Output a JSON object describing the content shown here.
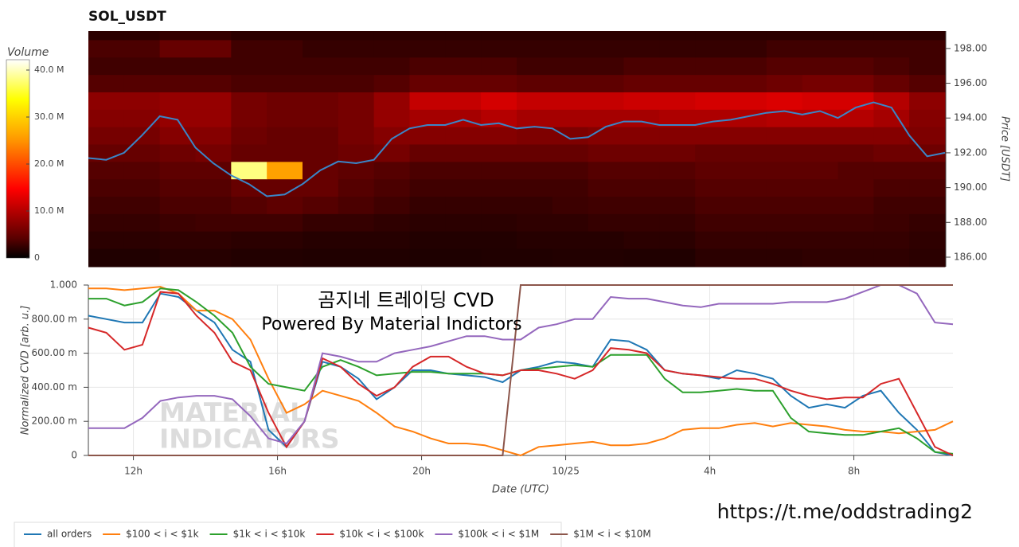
{
  "chart_data": [
    {
      "type": "heatmap",
      "title": "SOL_USDT",
      "xlim": [
        10.75,
        34.75
      ],
      "ylim": [
        185.45,
        199.0
      ],
      "y_axis_side": "right",
      "y_label": "Price [USDT]",
      "yticks": [
        {
          "value": 186,
          "label": "186.00"
        },
        {
          "value": 188,
          "label": "188.00"
        },
        {
          "value": 190,
          "label": "190.00"
        },
        {
          "value": 192,
          "label": "192.00"
        },
        {
          "value": 194,
          "label": "194.00"
        },
        {
          "value": 196,
          "label": "196.00"
        },
        {
          "value": 198,
          "label": "198.00"
        }
      ],
      "colorbar_label": "Volume",
      "zlim": [
        0,
        42.2
      ],
      "zticks": [
        0,
        {
          "value": 10,
          "label": "10.0 M"
        },
        {
          "value": 20,
          "label": "20.0 M"
        },
        {
          "value": 30,
          "label": "30.0 M"
        },
        {
          "value": 40,
          "label": "40.0 M"
        }
      ],
      "xbins": [
        10.75,
        11.75,
        12.75,
        13.75,
        14.75,
        15.75,
        16.75,
        17.75,
        18.75,
        19.75,
        20.75,
        21.75,
        22.75,
        23.75,
        24.75,
        25.75,
        26.75,
        27.75,
        28.75,
        29.75,
        30.75,
        31.75,
        32.75,
        33.75,
        34.75
      ],
      "ybins": [
        185.45,
        186.5,
        187.5,
        188.5,
        189.5,
        190.5,
        191.5,
        192.5,
        193.5,
        194.5,
        195.5,
        196.5,
        197.5,
        198.5,
        199.0
      ],
      "z": [
        [
          1.5,
          1.5,
          1.8,
          1.8,
          1.6,
          1.6,
          1.5,
          1.5,
          1.5,
          1.4,
          1.4,
          1.5,
          1.5,
          1.6,
          1.6,
          1.5,
          1.5,
          2.0,
          2.0,
          2.0,
          2.2,
          2.2,
          2.2,
          2.0
        ],
        [
          2,
          2,
          2.2,
          2.2,
          2,
          2,
          1.8,
          1.8,
          1.8,
          1.6,
          1.6,
          1.6,
          1.8,
          1.8,
          1.8,
          2,
          2,
          2.5,
          2.5,
          2.5,
          2.5,
          2.5,
          2.5,
          2.2
        ],
        [
          2.5,
          2.5,
          2.8,
          3,
          3,
          3,
          2.5,
          2.5,
          2.2,
          2,
          2,
          2,
          2.2,
          2.2,
          2.5,
          2.5,
          2.5,
          3,
          3,
          3,
          3,
          3,
          2.8,
          2.5
        ],
        [
          3,
          3,
          3.5,
          3.5,
          4,
          4.5,
          4,
          3.5,
          3,
          2.5,
          2.5,
          2.5,
          2.5,
          2.8,
          3,
          3,
          3,
          3.5,
          3.5,
          3.5,
          3.5,
          3.5,
          3,
          3
        ],
        [
          3.5,
          3.5,
          4,
          4,
          5,
          5,
          5,
          4,
          3.5,
          3,
          3,
          3,
          3,
          3,
          3.5,
          3.5,
          3.5,
          4,
          4,
          4,
          4,
          4,
          3.5,
          3.5
        ],
        [
          4,
          4,
          4.5,
          4.5,
          38,
          26,
          5,
          4.5,
          4,
          3.5,
          3.5,
          3.5,
          3.5,
          3.5,
          4,
          4,
          4,
          4.5,
          4.5,
          4.5,
          4.5,
          4,
          4,
          4
        ],
        [
          5,
          5,
          5.5,
          6,
          5,
          5,
          5,
          5.5,
          6,
          5,
          5,
          5,
          5,
          5,
          5.5,
          5.5,
          5.5,
          5,
          5,
          5,
          5,
          5,
          5.5,
          5.5
        ],
        [
          6,
          6,
          7,
          7,
          5.5,
          5,
          5,
          6,
          7,
          7,
          7,
          7,
          6.5,
          6.5,
          7,
          7,
          7,
          7,
          7,
          7,
          7,
          7,
          7,
          6.5
        ],
        [
          7,
          7,
          8,
          8,
          6,
          5.5,
          5.5,
          6,
          8,
          9,
          9,
          10,
          9,
          9,
          9,
          9,
          9.5,
          9.5,
          9.5,
          10,
          10,
          10,
          9,
          7
        ],
        [
          7.5,
          7.5,
          8,
          8,
          6,
          5.5,
          5.5,
          6,
          8,
          11,
          11,
          12,
          11,
          11,
          11,
          11.5,
          11.5,
          12,
          12,
          12.5,
          12,
          12,
          10,
          7.5
        ],
        [
          4,
          4,
          4,
          4,
          3.5,
          3.5,
          3.5,
          3.5,
          4,
          5,
          5,
          5,
          4.5,
          4.5,
          4.5,
          5,
          5,
          5,
          5,
          5.5,
          6,
          6,
          5,
          4
        ],
        [
          3,
          3,
          3,
          3,
          3,
          3,
          3,
          3,
          3,
          3.5,
          3.5,
          3.5,
          3,
          3,
          3,
          3.5,
          3.5,
          3.5,
          3.5,
          4,
          4,
          4,
          3.5,
          3
        ],
        [
          3.5,
          3.5,
          5,
          5,
          3,
          3,
          2.5,
          2.5,
          2.5,
          2.5,
          2.5,
          2.5,
          2.5,
          2.5,
          2.5,
          2.5,
          2.5,
          2.5,
          2.5,
          3,
          3,
          3,
          3,
          3
        ],
        [
          2,
          2,
          2.5,
          2.5,
          2,
          2,
          2,
          2,
          2,
          2,
          2,
          2,
          2,
          2,
          2,
          2,
          2,
          2,
          2,
          2,
          2,
          2,
          2,
          2
        ]
      ],
      "x": [
        10.75,
        11.25,
        11.75,
        12.25,
        12.75,
        13.25,
        13.75,
        14.25,
        14.75,
        15.25,
        15.75,
        16.25,
        16.75,
        17.25,
        17.75,
        18.25,
        18.75,
        19.25,
        19.75,
        20.25,
        20.75,
        21.25,
        21.75,
        22.25,
        22.75,
        23.25,
        23.75,
        24.25,
        24.75,
        25.25,
        25.75,
        26.25,
        26.75,
        27.25,
        27.75,
        28.25,
        28.75,
        29.25,
        29.75,
        30.25,
        30.75,
        31.25,
        31.75,
        32.25,
        32.75,
        33.25,
        33.75,
        34.25,
        34.75
      ],
      "line": {
        "color": "#3a86c8",
        "values": [
          191.7,
          191.6,
          192.0,
          193.0,
          194.1,
          193.9,
          192.3,
          191.4,
          190.7,
          190.2,
          189.5,
          189.6,
          190.2,
          191.0,
          191.5,
          191.4,
          191.6,
          192.8,
          193.4,
          193.6,
          193.6,
          193.9,
          193.6,
          193.7,
          193.4,
          193.5,
          193.4,
          192.8,
          192.9,
          193.5,
          193.8,
          193.8,
          193.6,
          193.6,
          193.6,
          193.8,
          193.9,
          194.1,
          194.3,
          194.4,
          194.2,
          194.4,
          194.0,
          194.6,
          194.9,
          194.6,
          193.0,
          191.8,
          192.0
        ]
      }
    },
    {
      "type": "line",
      "x_label": "Date (UTC)",
      "y_label": "Normalized CVD [arb. u.]",
      "grid": true,
      "legend": "below",
      "annotations": [
        "곰지네 트레이딩 CVD",
        "Powered By Material Indictors"
      ],
      "watermark": [
        "MATERIAL",
        "INDICATORS"
      ],
      "xlim": [
        10.75,
        34.75
      ],
      "ylim": [
        0,
        1
      ],
      "xticks": [
        {
          "value": 12,
          "label": "12h"
        },
        {
          "value": 16,
          "label": "16h"
        },
        {
          "value": 20,
          "label": "20h"
        },
        {
          "value": 24,
          "label": "10/25"
        },
        {
          "value": 28,
          "label": "4h"
        },
        {
          "value": 32,
          "label": "8h"
        }
      ],
      "yticks": [
        0,
        {
          "value": 0.2,
          "label": "200.00 m"
        },
        {
          "value": 0.4,
          "label": "400.00 m"
        },
        {
          "value": 0.6,
          "label": "600.00 m"
        },
        {
          "value": 0.8,
          "label": "800.00 m"
        },
        {
          "value": 1,
          "label": "1.000"
        }
      ],
      "x": [
        10.75,
        11.25,
        11.75,
        12.25,
        12.75,
        13.25,
        13.75,
        14.25,
        14.75,
        15.25,
        15.75,
        16.25,
        16.75,
        17.25,
        17.75,
        18.25,
        18.75,
        19.25,
        19.75,
        20.25,
        20.75,
        21.25,
        21.75,
        22.25,
        22.75,
        23.25,
        23.75,
        24.25,
        24.75,
        25.25,
        25.75,
        26.25,
        26.75,
        27.25,
        27.75,
        28.25,
        28.75,
        29.25,
        29.75,
        30.25,
        30.75,
        31.25,
        31.75,
        32.25,
        32.75,
        33.25,
        33.75,
        34.25,
        34.75
      ],
      "series": [
        {
          "name": "all orders",
          "color": "#1f77b4",
          "values": [
            0.82,
            0.8,
            0.78,
            0.78,
            0.95,
            0.93,
            0.85,
            0.78,
            0.62,
            0.55,
            0.15,
            0.05,
            0.2,
            0.55,
            0.52,
            0.45,
            0.33,
            0.4,
            0.5,
            0.5,
            0.48,
            0.47,
            0.46,
            0.43,
            0.5,
            0.52,
            0.55,
            0.54,
            0.52,
            0.68,
            0.67,
            0.62,
            0.5,
            0.48,
            0.47,
            0.45,
            0.5,
            0.48,
            0.45,
            0.35,
            0.28,
            0.3,
            0.28,
            0.35,
            0.38,
            0.25,
            0.15,
            0.02,
            0
          ]
        },
        {
          "name": "$100 < i < $1k",
          "color": "#ff7f0e",
          "values": [
            0.98,
            0.98,
            0.97,
            0.98,
            0.99,
            0.95,
            0.85,
            0.85,
            0.8,
            0.68,
            0.45,
            0.25,
            0.3,
            0.38,
            0.35,
            0.32,
            0.25,
            0.17,
            0.14,
            0.1,
            0.07,
            0.07,
            0.06,
            0.03,
            0,
            0.05,
            0.06,
            0.07,
            0.08,
            0.06,
            0.06,
            0.07,
            0.1,
            0.15,
            0.16,
            0.16,
            0.18,
            0.19,
            0.17,
            0.19,
            0.18,
            0.17,
            0.15,
            0.14,
            0.14,
            0.13,
            0.14,
            0.15,
            0.2
          ]
        },
        {
          "name": "$1k < i < $10k",
          "color": "#2ca02c",
          "values": [
            0.92,
            0.92,
            0.88,
            0.9,
            0.98,
            0.97,
            0.9,
            0.82,
            0.72,
            0.52,
            0.42,
            0.4,
            0.38,
            0.52,
            0.56,
            0.52,
            0.47,
            0.48,
            0.49,
            0.49,
            0.48,
            0.48,
            0.48,
            0.47,
            0.5,
            0.51,
            0.52,
            0.53,
            0.52,
            0.59,
            0.59,
            0.59,
            0.45,
            0.37,
            0.37,
            0.38,
            0.39,
            0.38,
            0.38,
            0.22,
            0.14,
            0.13,
            0.12,
            0.12,
            0.14,
            0.16,
            0.1,
            0.02,
            0.01
          ]
        },
        {
          "name": "$10k < i < $100k",
          "color": "#d62728",
          "values": [
            0.75,
            0.72,
            0.62,
            0.65,
            0.96,
            0.95,
            0.82,
            0.72,
            0.55,
            0.5,
            0.25,
            0.05,
            0.2,
            0.57,
            0.52,
            0.42,
            0.35,
            0.4,
            0.52,
            0.58,
            0.58,
            0.52,
            0.48,
            0.47,
            0.5,
            0.5,
            0.48,
            0.45,
            0.5,
            0.63,
            0.62,
            0.6,
            0.5,
            0.48,
            0.47,
            0.46,
            0.45,
            0.45,
            0.42,
            0.38,
            0.35,
            0.33,
            0.34,
            0.34,
            0.42,
            0.45,
            0.25,
            0.05,
            0
          ]
        },
        {
          "name": "$100k < i < $1M",
          "color": "#9467bd",
          "values": [
            0.16,
            0.16,
            0.16,
            0.22,
            0.32,
            0.34,
            0.35,
            0.35,
            0.33,
            0.23,
            0.1,
            0.07,
            0.2,
            0.6,
            0.58,
            0.55,
            0.55,
            0.6,
            0.62,
            0.64,
            0.67,
            0.7,
            0.7,
            0.68,
            0.68,
            0.75,
            0.77,
            0.8,
            0.8,
            0.93,
            0.92,
            0.92,
            0.9,
            0.88,
            0.87,
            0.89,
            0.89,
            0.89,
            0.89,
            0.9,
            0.9,
            0.9,
            0.92,
            0.96,
            1,
            1,
            0.95,
            0.78,
            0.77
          ]
        },
        {
          "name": "$1M < i < $10M",
          "color": "#8c564b",
          "values": [
            0,
            0,
            0,
            0,
            0,
            0,
            0,
            0,
            0,
            0,
            0,
            0,
            0,
            0,
            0,
            0,
            0,
            0,
            0,
            0,
            0,
            0,
            0,
            0,
            1,
            1,
            1,
            1,
            1,
            1,
            1,
            1,
            1,
            1,
            1,
            1,
            1,
            1,
            1,
            1,
            1,
            1,
            1,
            1,
            1,
            1,
            1,
            1,
            1
          ]
        }
      ]
    }
  ],
  "footer": "https://t.me/oddstrading2"
}
